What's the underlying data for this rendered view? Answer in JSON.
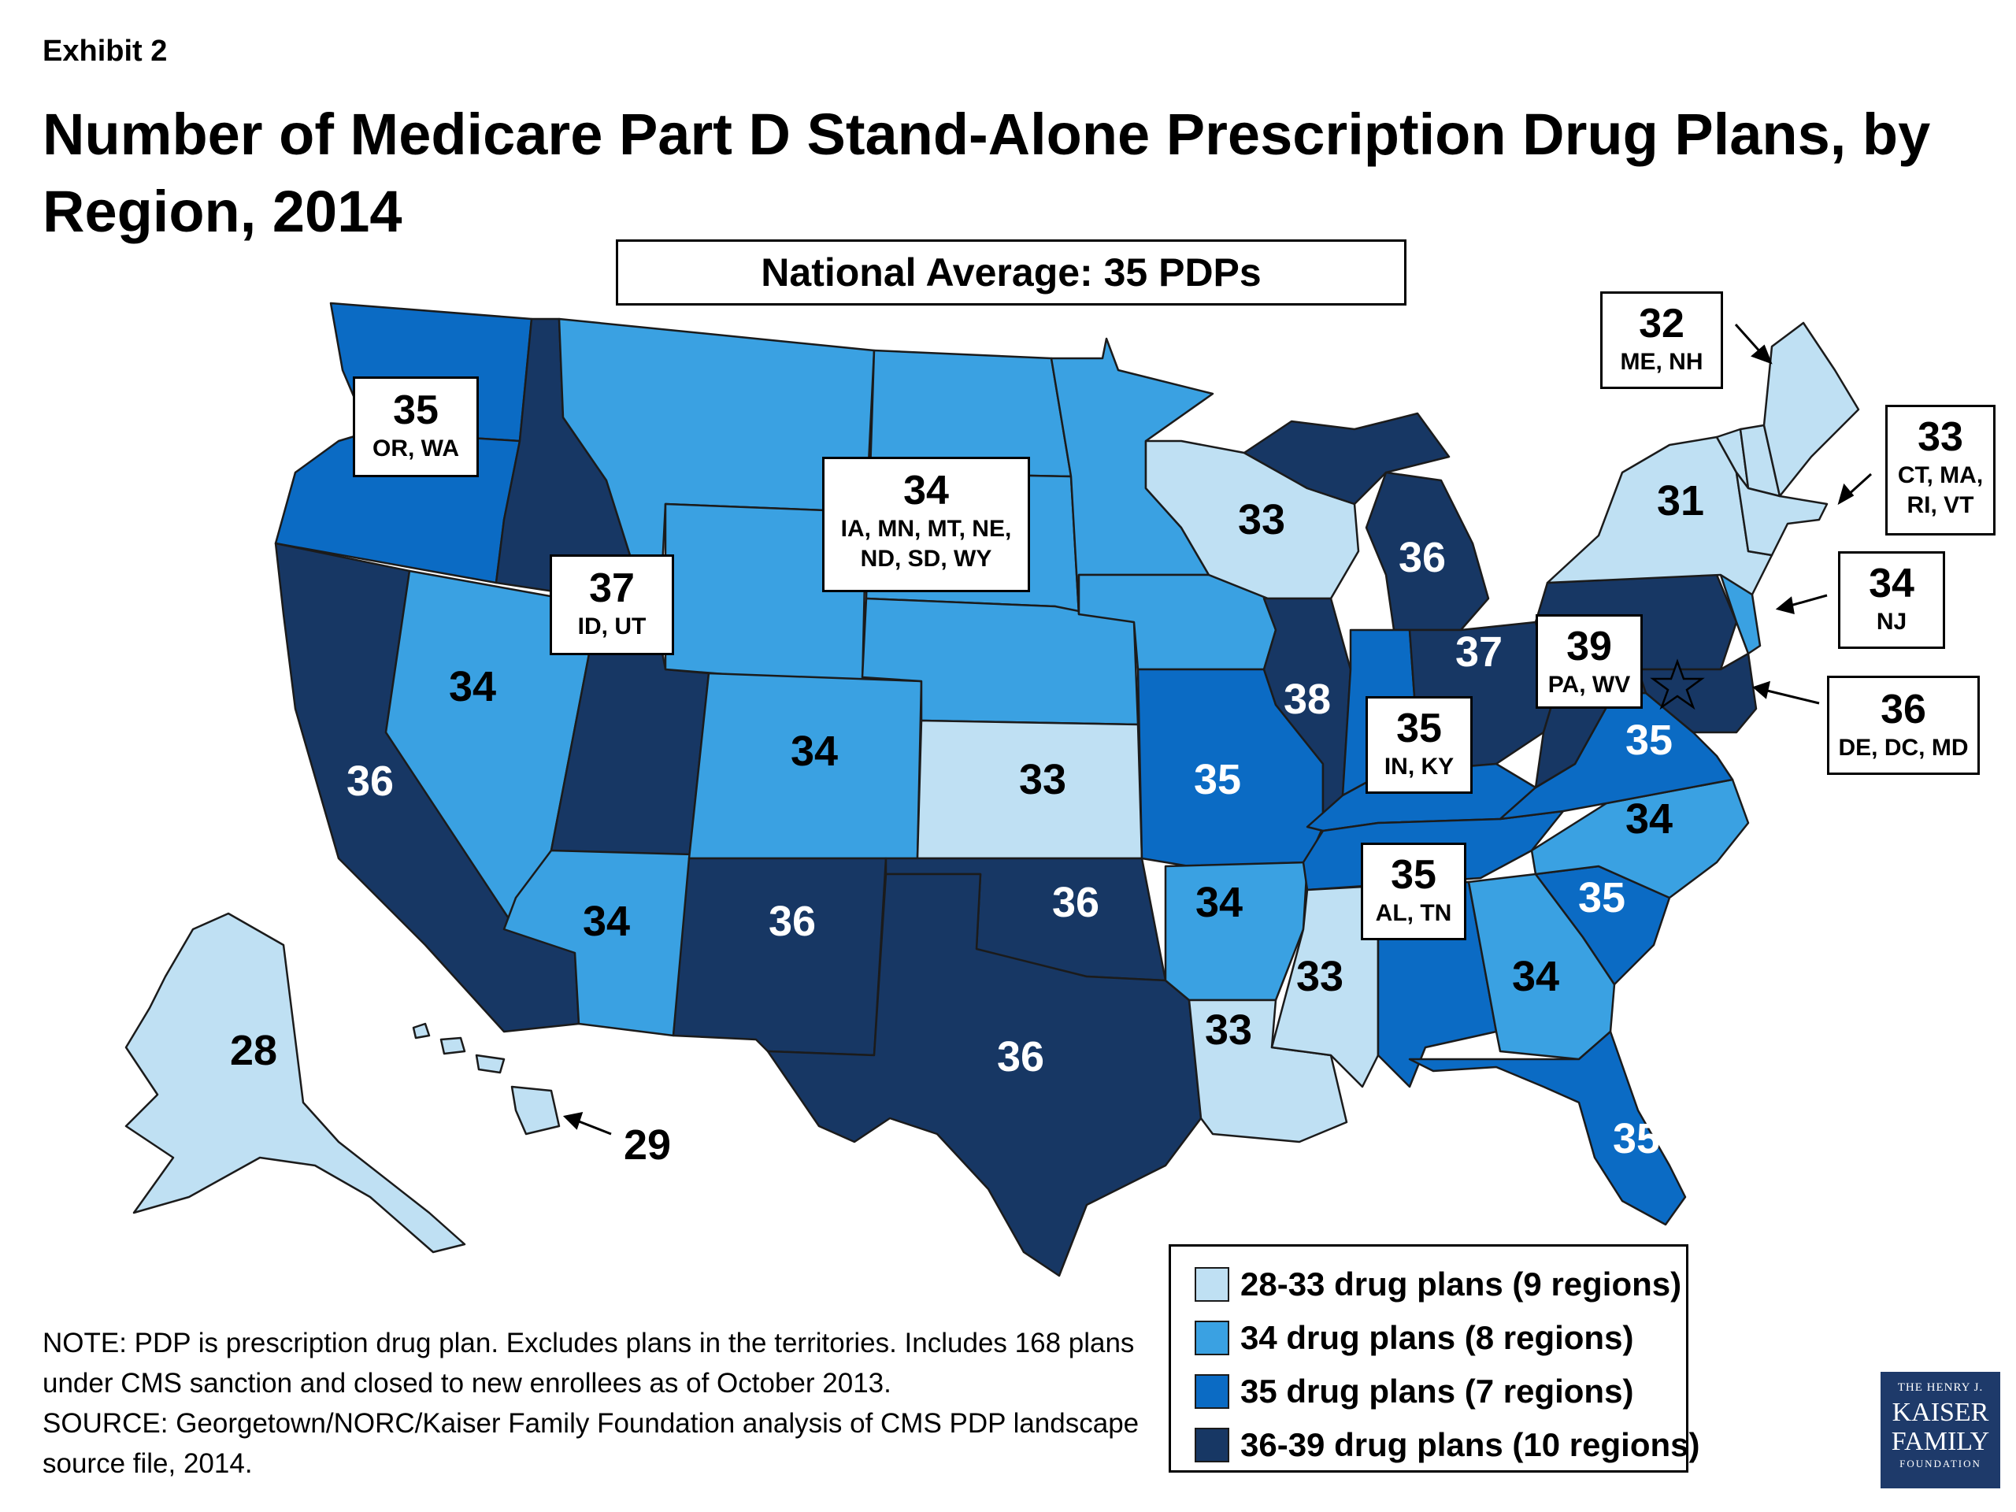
{
  "exhibit": "Exhibit 2",
  "title": "Number of Medicare Part D Stand-Alone Prescription Drug Plans, by Region, 2014",
  "national_average": "National Average: 35 PDPs",
  "colors": {
    "tier1": "#bfe0f3",
    "tier2": "#3aa1e2",
    "tier3": "#0b6bc4",
    "tier4": "#173764",
    "stroke": "#1b1b1b"
  },
  "legend": [
    {
      "label": "28-33 drug plans (9 regions)",
      "tier": "tier1"
    },
    {
      "label": "34 drug plans (8 regions)",
      "tier": "tier2"
    },
    {
      "label": "35 drug plans (7 regions)",
      "tier": "tier3"
    },
    {
      "label": "36-39 drug plans (10 regions)",
      "tier": "tier4"
    }
  ],
  "regions": {
    "or_wa": {
      "value": "35",
      "states": "OR, WA"
    },
    "me_nh": {
      "value": "32",
      "states": "ME, NH"
    },
    "ct_ma_ri_vt": {
      "value": "33",
      "states": "CT, MA, RI, VT"
    },
    "nw_plains": {
      "value": "34",
      "states": "IA, MN, MT, NE, ND, SD, WY"
    },
    "id_ut": {
      "value": "37",
      "states": "ID, UT"
    },
    "nj": {
      "value": "34",
      "states": "NJ"
    },
    "pa_wv": {
      "value": "39",
      "states": "PA, WV"
    },
    "in_ky": {
      "value": "35",
      "states": "IN, KY"
    },
    "de_dc_md": {
      "value": "36",
      "states": "DE, DC, MD"
    },
    "al_tn": {
      "value": "35",
      "states": "AL, TN"
    },
    "ny": {
      "value": "31"
    },
    "wi": {
      "value": "33"
    },
    "mi": {
      "value": "36"
    },
    "nv": {
      "value": "34"
    },
    "ca": {
      "value": "36"
    },
    "co": {
      "value": "34"
    },
    "ks": {
      "value": "33"
    },
    "mo": {
      "value": "35"
    },
    "il": {
      "value": "38"
    },
    "oh": {
      "value": "37"
    },
    "va": {
      "value": "35"
    },
    "nc": {
      "value": "34"
    },
    "az": {
      "value": "34"
    },
    "nm": {
      "value": "36"
    },
    "ok": {
      "value": "36"
    },
    "ar": {
      "value": "34"
    },
    "ms": {
      "value": "33"
    },
    "la": {
      "value": "33"
    },
    "sc": {
      "value": "35"
    },
    "ga": {
      "value": "34"
    },
    "tx": {
      "value": "36"
    },
    "fl": {
      "value": "35"
    },
    "ak": {
      "value": "28"
    },
    "hi": {
      "value": "29"
    }
  },
  "note": "NOTE: PDP is prescription drug plan. Excludes plans in the territories. Includes 168 plans under CMS sanction and closed to new enrollees as of October 2013.",
  "source": "SOURCE: Georgetown/NORC/Kaiser Family Foundation analysis of CMS PDP landscape source file, 2014.",
  "logo": {
    "line1": "THE HENRY J.",
    "line2": "KAISER",
    "line3": "FAMILY",
    "line4": "FOUNDATION"
  }
}
